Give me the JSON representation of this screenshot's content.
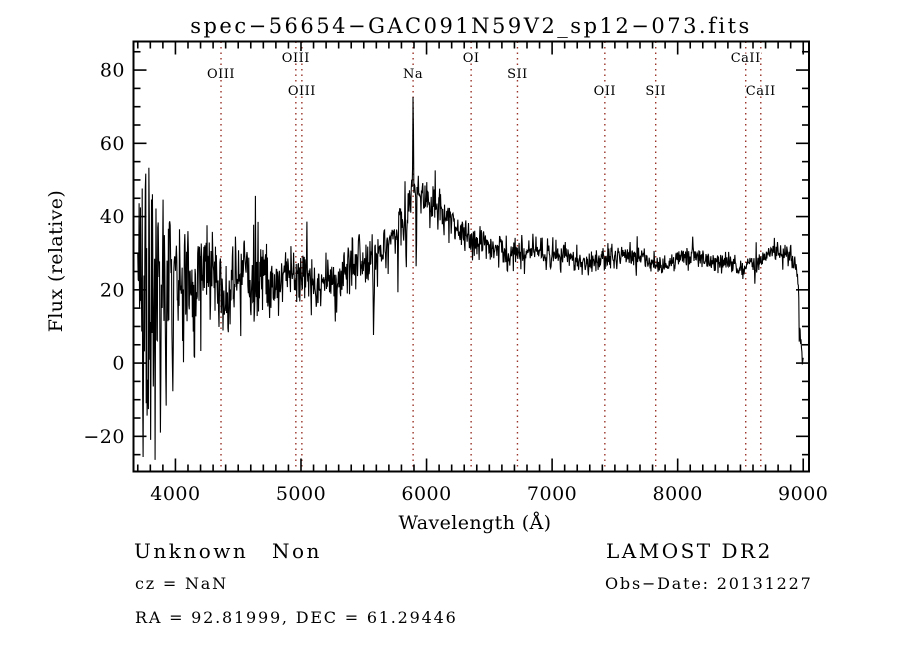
{
  "title": "spec−56654−GAC091N59V2_sp12−073.fits",
  "footer": {
    "classification": "Unknown",
    "subclass": "Non",
    "cz": "cz = NaN",
    "coords": "RA =  92.81999, DEC =  61.29446",
    "survey": "LAMOST DR2",
    "obs_date": "Obs−Date: 20131227"
  },
  "chart_data": {
    "type": "line",
    "plot_type": "astronomical-spectrum",
    "title": "spec−56654−GAC091N59V2_sp12−073.fits",
    "xlabel": "Wavelength (Å)",
    "ylabel": "Flux (relative)",
    "xlim": [
      3666,
      9046
    ],
    "ylim": [
      -29.6,
      87.8
    ],
    "xticks": [
      4000,
      5000,
      6000,
      7000,
      8000,
      9000
    ],
    "xtick_labels": [
      "4000",
      "5000",
      "6000",
      "7000",
      "8000",
      "9000"
    ],
    "x_minor_step": 100,
    "yticks": [
      -20,
      0,
      20,
      40,
      60,
      80
    ],
    "ytick_labels": [
      "−20",
      "0",
      "20",
      "40",
      "60",
      "80"
    ],
    "y_minor_step": 5,
    "grid": false,
    "legend": "none",
    "line_color": "#000000",
    "marker_line_color": "#993328",
    "spectral_lines": [
      {
        "label": "OIII",
        "wavelength": 4363,
        "row": "mid"
      },
      {
        "label": "OIII",
        "wavelength": 4959,
        "row": "top"
      },
      {
        "label": "OIII",
        "wavelength": 5007,
        "row": "low"
      },
      {
        "label": "Na",
        "wavelength": 5893,
        "row": "mid"
      },
      {
        "label": "OI",
        "wavelength": 6355,
        "row": "top"
      },
      {
        "label": "SII",
        "wavelength": 6724,
        "row": "mid"
      },
      {
        "label": "OII",
        "wavelength": 7420,
        "row": "low"
      },
      {
        "label": "SII",
        "wavelength": 7825,
        "row": "low"
      },
      {
        "label": "CaII",
        "wavelength": 8542,
        "row": "top"
      },
      {
        "label": "CaII",
        "wavelength": 8662,
        "row": "low"
      }
    ],
    "spectrum": {
      "x_start": 3700,
      "x_end": 9000,
      "n_points": 1500,
      "seed": 12,
      "continuum": [
        [
          3700,
          19
        ],
        [
          3760,
          20
        ],
        [
          3820,
          20
        ],
        [
          3880,
          21
        ],
        [
          3940,
          20
        ],
        [
          4000,
          21
        ],
        [
          4080,
          22
        ],
        [
          4160,
          22
        ],
        [
          4240,
          24
        ],
        [
          4300,
          25
        ],
        [
          4360,
          21
        ],
        [
          4420,
          17
        ],
        [
          4480,
          22
        ],
        [
          4540,
          26
        ],
        [
          4600,
          19
        ],
        [
          4660,
          22
        ],
        [
          4700,
          25
        ],
        [
          4760,
          22
        ],
        [
          4820,
          22
        ],
        [
          4880,
          24
        ],
        [
          4940,
          24
        ],
        [
          5000,
          22
        ],
        [
          5060,
          22
        ],
        [
          5120,
          21
        ],
        [
          5180,
          22
        ],
        [
          5240,
          23
        ],
        [
          5300,
          24
        ],
        [
          5360,
          25
        ],
        [
          5420,
          26
        ],
        [
          5480,
          28
        ],
        [
          5540,
          27
        ],
        [
          5600,
          30
        ],
        [
          5660,
          32
        ],
        [
          5720,
          34
        ],
        [
          5780,
          37
        ],
        [
          5830,
          41
        ],
        [
          5870,
          45
        ],
        [
          5900,
          47
        ],
        [
          5930,
          46
        ],
        [
          5970,
          45
        ],
        [
          6010,
          44
        ],
        [
          6060,
          42
        ],
        [
          6110,
          40
        ],
        [
          6170,
          39
        ],
        [
          6230,
          37
        ],
        [
          6290,
          35
        ],
        [
          6350,
          34
        ],
        [
          6410,
          33
        ],
        [
          6470,
          32
        ],
        [
          6530,
          31.5
        ],
        [
          6590,
          31
        ],
        [
          6650,
          30
        ],
        [
          6720,
          30
        ],
        [
          6800,
          31
        ],
        [
          6900,
          31
        ],
        [
          7000,
          30
        ],
        [
          7100,
          29
        ],
        [
          7200,
          28
        ],
        [
          7300,
          27
        ],
        [
          7400,
          28
        ],
        [
          7500,
          29
        ],
        [
          7560,
          30
        ],
        [
          7620,
          29
        ],
        [
          7700,
          29
        ],
        [
          7800,
          28
        ],
        [
          7900,
          27
        ],
        [
          8000,
          28
        ],
        [
          8100,
          29
        ],
        [
          8200,
          28
        ],
        [
          8300,
          27.5
        ],
        [
          8400,
          28
        ],
        [
          8480,
          26.5
        ],
        [
          8560,
          26
        ],
        [
          8620,
          27
        ],
        [
          8700,
          29
        ],
        [
          8760,
          30
        ],
        [
          8820,
          30
        ],
        [
          8880,
          28.5
        ],
        [
          8930,
          27.5
        ],
        [
          8958,
          23
        ],
        [
          8972,
          7
        ],
        [
          9000,
          1
        ]
      ],
      "noise_sigma": [
        [
          3700,
          16
        ],
        [
          3740,
          18
        ],
        [
          3800,
          15
        ],
        [
          3860,
          13
        ],
        [
          3920,
          11
        ],
        [
          4000,
          9
        ],
        [
          4100,
          7.5
        ],
        [
          4200,
          6.5
        ],
        [
          4350,
          5.5
        ],
        [
          4500,
          5
        ],
        [
          4700,
          4.2
        ],
        [
          4900,
          3.8
        ],
        [
          5100,
          3.4
        ],
        [
          5300,
          3.2
        ],
        [
          5500,
          3.0
        ],
        [
          5700,
          3.0
        ],
        [
          5900,
          3.2
        ],
        [
          6100,
          2.6
        ],
        [
          6300,
          2.3
        ],
        [
          6500,
          2.1
        ],
        [
          6700,
          2.0
        ],
        [
          6900,
          1.9
        ],
        [
          7100,
          1.8
        ],
        [
          7400,
          1.7
        ],
        [
          7700,
          1.6
        ],
        [
          8000,
          1.5
        ],
        [
          8300,
          1.5
        ],
        [
          8600,
          1.5
        ],
        [
          8900,
          1.4
        ],
        [
          9000,
          1.2
        ]
      ],
      "features": [
        [
          3742,
          -28,
          6
        ],
        [
          3762,
          52,
          5
        ],
        [
          3775,
          -22,
          5
        ],
        [
          3790,
          61,
          5
        ],
        [
          3803,
          -26,
          5
        ],
        [
          3818,
          50,
          5
        ],
        [
          3838,
          -27,
          5
        ],
        [
          3862,
          45,
          5
        ],
        [
          3880,
          -22,
          5
        ],
        [
          3900,
          47,
          5
        ],
        [
          3925,
          -18,
          5
        ],
        [
          3952,
          40,
          5
        ],
        [
          3980,
          -12,
          5
        ],
        [
          4006,
          38,
          5
        ],
        [
          4075,
          36,
          4
        ],
        [
          4150,
          -5,
          4
        ],
        [
          4420,
          3,
          5
        ],
        [
          4455,
          34,
          4
        ],
        [
          4520,
          6,
          4
        ],
        [
          4600,
          8,
          4
        ],
        [
          4680,
          33,
          4
        ],
        [
          4750,
          12,
          4
        ],
        [
          5047,
          39,
          5
        ],
        [
          5120,
          13,
          4
        ],
        [
          5285,
          11,
          5
        ],
        [
          5410,
          38,
          5
        ],
        [
          5578,
          6,
          8
        ],
        [
          5695,
          22,
          4
        ],
        [
          5772,
          19,
          5
        ],
        [
          5838,
          23,
          6
        ],
        [
          5893,
          76,
          7
        ],
        [
          5905,
          50,
          5
        ],
        [
          5918,
          21,
          5
        ],
        [
          6010,
          50,
          4
        ],
        [
          6060,
          49,
          4
        ],
        [
          7670,
          23.5,
          5
        ],
        [
          8120,
          35,
          6
        ],
        [
          8470,
          24.5,
          4
        ],
        [
          8520,
          23.5,
          5
        ]
      ]
    }
  }
}
